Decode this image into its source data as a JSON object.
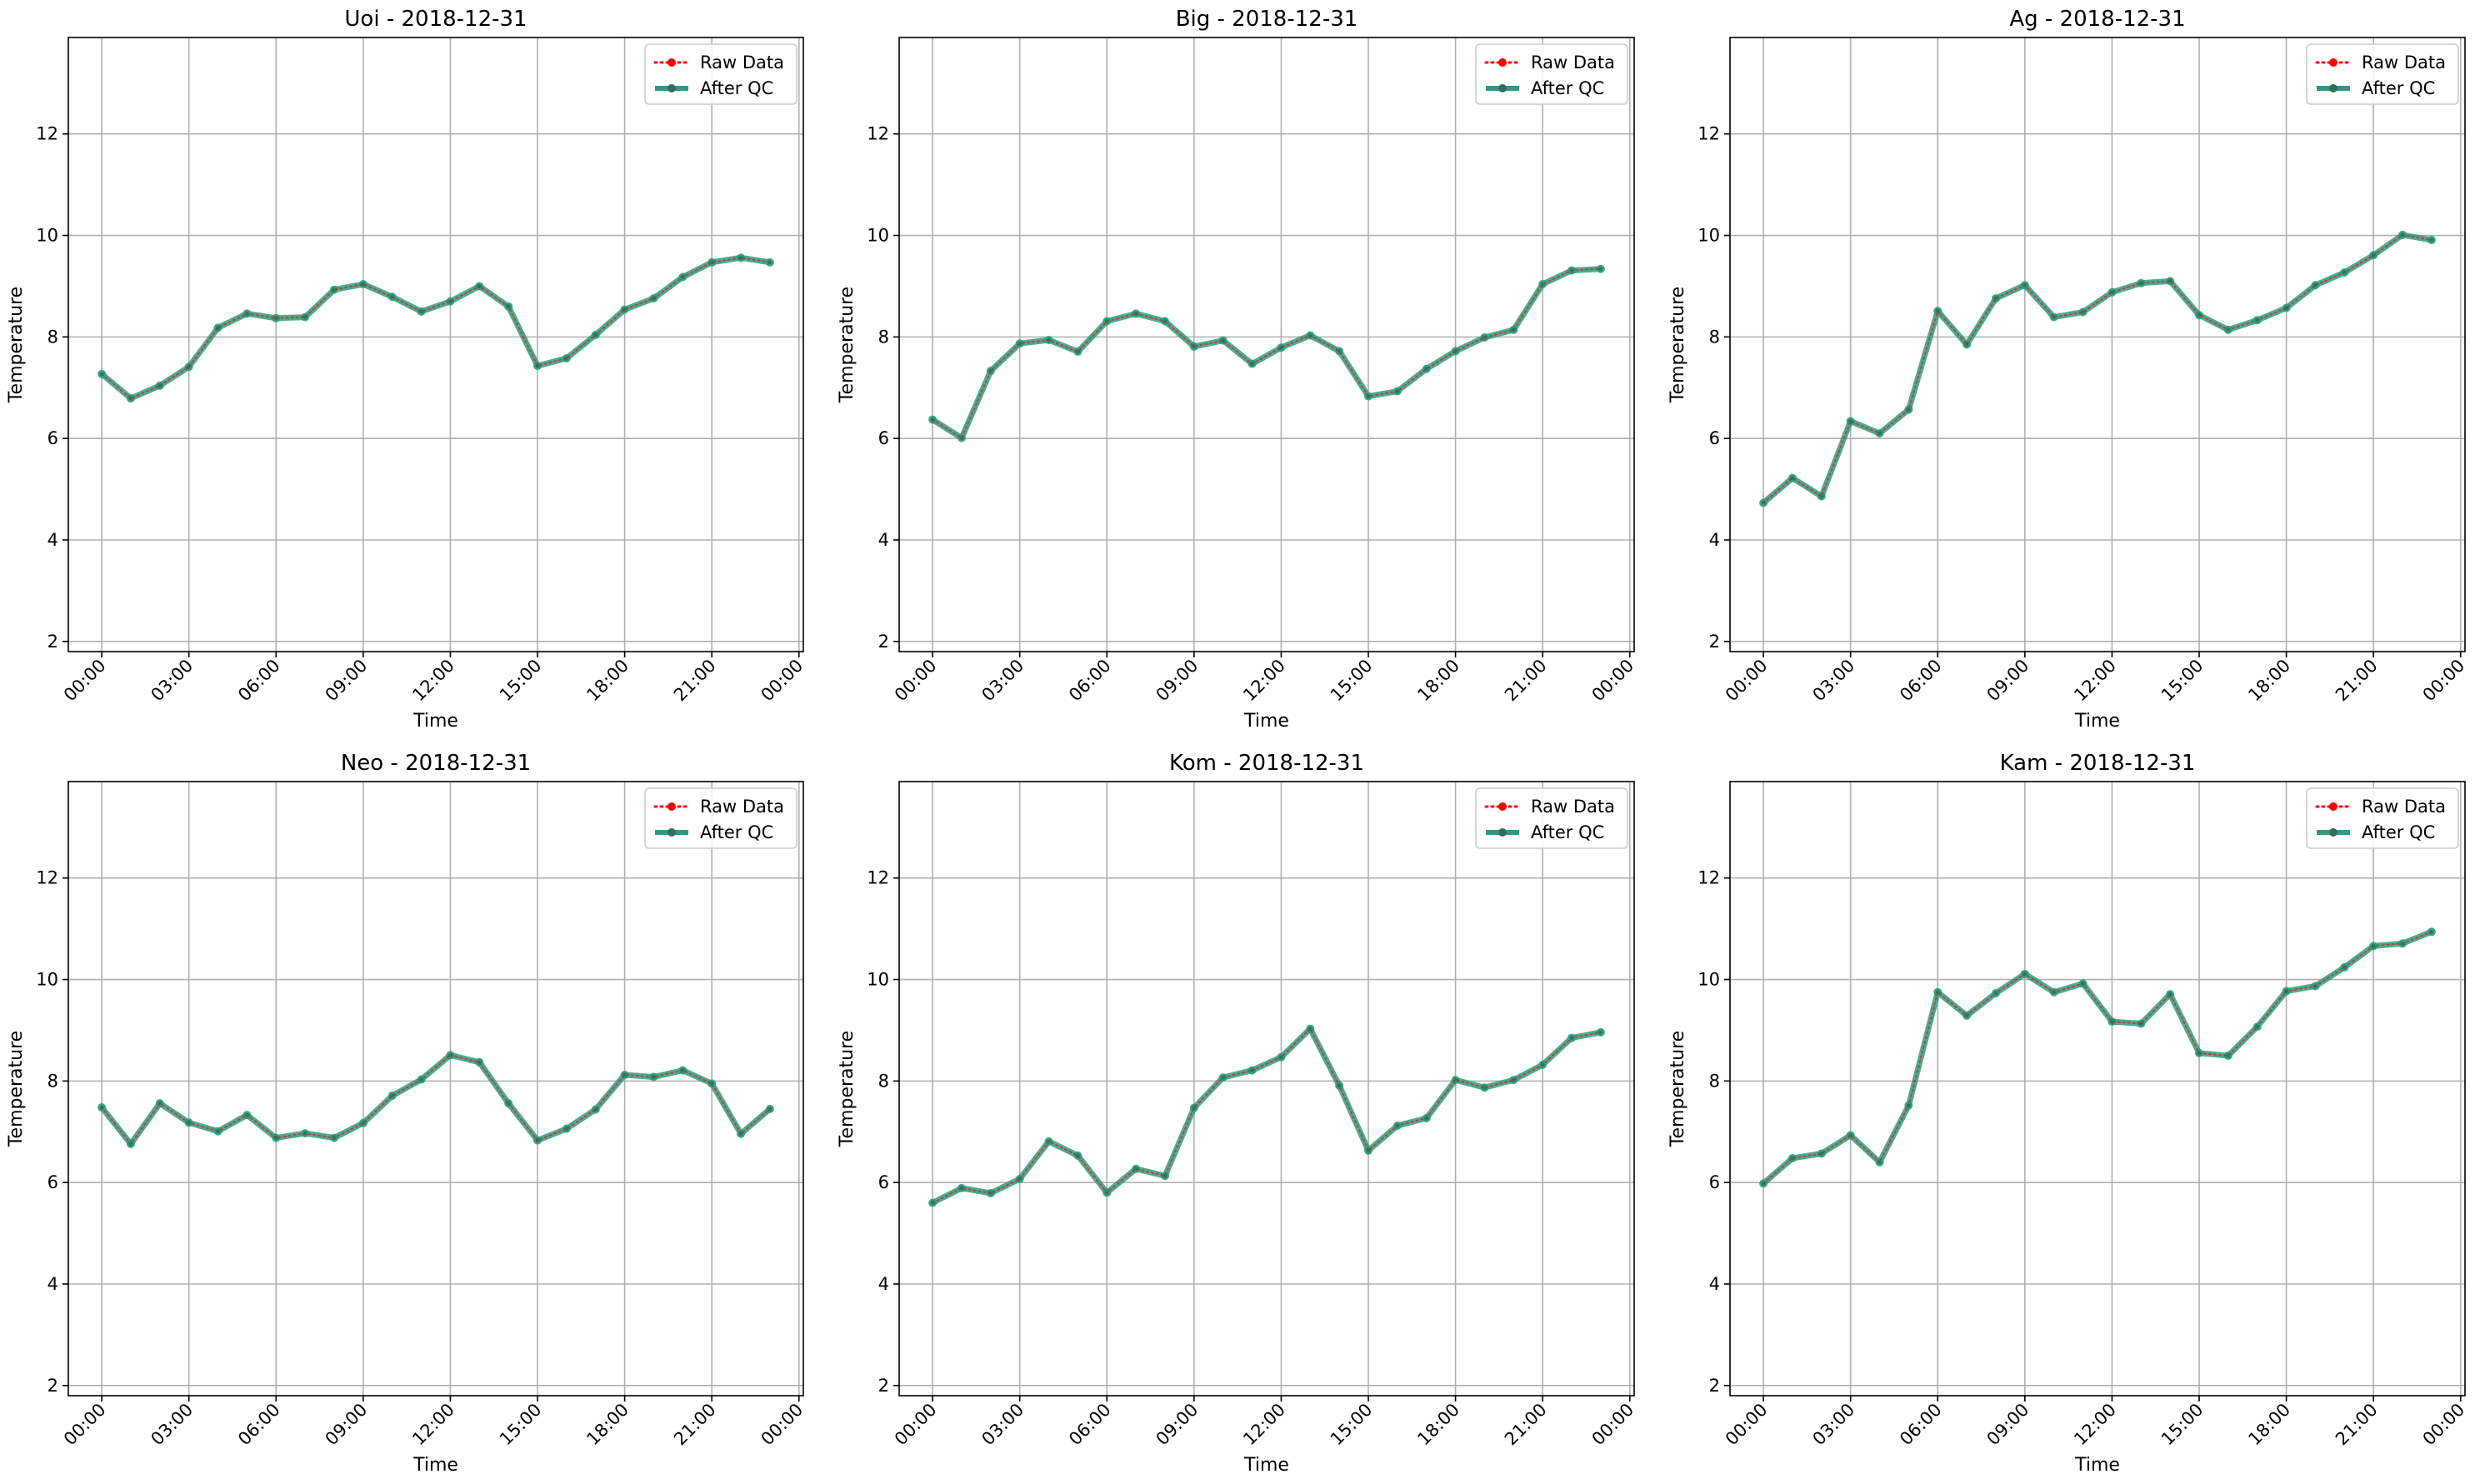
{
  "chart_data": [
    {
      "type": "line",
      "title": "Uoi - 2018-12-31",
      "xlabel": "Time",
      "ylabel": "Temperature",
      "x": [
        "00:00",
        "01:00",
        "02:00",
        "03:00",
        "04:00",
        "05:00",
        "06:00",
        "07:00",
        "08:00",
        "09:00",
        "10:00",
        "11:00",
        "12:00",
        "13:00",
        "14:00",
        "15:00",
        "16:00",
        "17:00",
        "18:00",
        "19:00",
        "20:00",
        "21:00",
        "22:00",
        "23:00"
      ],
      "xticks": [
        "00:00",
        "03:00",
        "06:00",
        "09:00",
        "12:00",
        "15:00",
        "18:00",
        "21:00",
        "00:00"
      ],
      "ylim": [
        1.8,
        13.9
      ],
      "yticks": [
        2,
        4,
        6,
        8,
        10,
        12
      ],
      "grid": true,
      "legend_position": "upper right",
      "series": [
        {
          "name": "Raw Data",
          "color": "#ff0000",
          "style": "dotted",
          "values": [
            7.27,
            6.79,
            7.04,
            7.41,
            8.18,
            8.46,
            8.37,
            8.39,
            8.93,
            9.04,
            8.79,
            8.5,
            8.7,
            9.0,
            8.6,
            7.43,
            7.58,
            8.04,
            8.54,
            8.76,
            9.18,
            9.47,
            9.56,
            9.47
          ]
        },
        {
          "name": "After QC",
          "color": "#2a9d7f",
          "style": "solid",
          "values": [
            7.27,
            6.79,
            7.04,
            7.41,
            8.18,
            8.46,
            8.37,
            8.39,
            8.93,
            9.04,
            8.79,
            8.5,
            8.7,
            9.0,
            8.6,
            7.43,
            7.58,
            8.04,
            8.54,
            8.76,
            9.18,
            9.47,
            9.56,
            9.47
          ]
        }
      ]
    },
    {
      "type": "line",
      "title": "Big - 2018-12-31",
      "xlabel": "Time",
      "ylabel": "Temperature",
      "x": [
        "00:00",
        "01:00",
        "02:00",
        "03:00",
        "04:00",
        "05:00",
        "06:00",
        "07:00",
        "08:00",
        "09:00",
        "10:00",
        "11:00",
        "12:00",
        "13:00",
        "14:00",
        "15:00",
        "16:00",
        "17:00",
        "18:00",
        "19:00",
        "20:00",
        "21:00",
        "22:00",
        "23:00"
      ],
      "xticks": [
        "00:00",
        "03:00",
        "06:00",
        "09:00",
        "12:00",
        "15:00",
        "18:00",
        "21:00",
        "00:00"
      ],
      "ylim": [
        1.8,
        13.9
      ],
      "yticks": [
        2,
        4,
        6,
        8,
        10,
        12
      ],
      "grid": true,
      "legend_position": "upper right",
      "series": [
        {
          "name": "Raw Data",
          "color": "#ff0000",
          "style": "dotted",
          "values": [
            6.37,
            6.01,
            7.33,
            7.87,
            7.94,
            7.71,
            8.31,
            8.46,
            8.31,
            7.81,
            7.93,
            7.47,
            7.79,
            8.03,
            7.72,
            6.83,
            6.93,
            7.37,
            7.72,
            7.99,
            8.14,
            9.04,
            9.31,
            9.34
          ]
        },
        {
          "name": "After QC",
          "color": "#2a9d7f",
          "style": "solid",
          "values": [
            6.37,
            6.01,
            7.33,
            7.87,
            7.94,
            7.71,
            8.31,
            8.46,
            8.31,
            7.81,
            7.93,
            7.47,
            7.79,
            8.03,
            7.72,
            6.83,
            6.93,
            7.37,
            7.72,
            7.99,
            8.14,
            9.04,
            9.31,
            9.34
          ]
        }
      ]
    },
    {
      "type": "line",
      "title": "Ag - 2018-12-31",
      "xlabel": "Time",
      "ylabel": "Temperature",
      "x": [
        "00:00",
        "01:00",
        "02:00",
        "03:00",
        "04:00",
        "05:00",
        "06:00",
        "07:00",
        "08:00",
        "09:00",
        "10:00",
        "11:00",
        "12:00",
        "13:00",
        "14:00",
        "15:00",
        "16:00",
        "17:00",
        "18:00",
        "19:00",
        "20:00",
        "21:00",
        "22:00",
        "23:00"
      ],
      "xticks": [
        "00:00",
        "03:00",
        "06:00",
        "09:00",
        "12:00",
        "15:00",
        "18:00",
        "21:00",
        "00:00"
      ],
      "ylim": [
        1.8,
        13.9
      ],
      "yticks": [
        2,
        4,
        6,
        8,
        10,
        12
      ],
      "grid": true,
      "legend_position": "upper right",
      "series": [
        {
          "name": "Raw Data",
          "color": "#ff0000",
          "style": "dotted",
          "values": [
            4.73,
            5.22,
            4.86,
            6.34,
            6.1,
            6.57,
            8.51,
            7.85,
            8.76,
            9.02,
            8.39,
            8.49,
            8.88,
            9.06,
            9.1,
            8.43,
            8.14,
            8.33,
            8.57,
            9.02,
            9.27,
            9.61,
            10.01,
            9.91
          ]
        },
        {
          "name": "After QC",
          "color": "#2a9d7f",
          "style": "solid",
          "values": [
            4.73,
            5.22,
            4.86,
            6.34,
            6.1,
            6.57,
            8.51,
            7.85,
            8.76,
            9.02,
            8.39,
            8.49,
            8.88,
            9.06,
            9.1,
            8.43,
            8.14,
            8.33,
            8.57,
            9.02,
            9.27,
            9.61,
            10.01,
            9.91
          ]
        }
      ]
    },
    {
      "type": "line",
      "title": "Neo - 2018-12-31",
      "xlabel": "Time",
      "ylabel": "Temperature",
      "x": [
        "00:00",
        "01:00",
        "02:00",
        "03:00",
        "04:00",
        "05:00",
        "06:00",
        "07:00",
        "08:00",
        "09:00",
        "10:00",
        "11:00",
        "12:00",
        "13:00",
        "14:00",
        "15:00",
        "16:00",
        "17:00",
        "18:00",
        "19:00",
        "20:00",
        "21:00",
        "22:00",
        "23:00"
      ],
      "xticks": [
        "00:00",
        "03:00",
        "06:00",
        "09:00",
        "12:00",
        "15:00",
        "18:00",
        "21:00",
        "00:00"
      ],
      "ylim": [
        1.8,
        13.9
      ],
      "yticks": [
        2,
        4,
        6,
        8,
        10,
        12
      ],
      "grid": true,
      "legend_position": "upper right",
      "series": [
        {
          "name": "Raw Data",
          "color": "#ff0000",
          "style": "dotted",
          "values": [
            7.48,
            6.76,
            7.56,
            7.18,
            7.01,
            7.33,
            6.88,
            6.97,
            6.88,
            7.17,
            7.71,
            8.03,
            8.51,
            8.37,
            7.56,
            6.83,
            7.06,
            7.44,
            8.12,
            8.08,
            8.21,
            7.95,
            6.96,
            7.45
          ]
        },
        {
          "name": "After QC",
          "color": "#2a9d7f",
          "style": "solid",
          "values": [
            7.48,
            6.76,
            7.56,
            7.18,
            7.01,
            7.33,
            6.88,
            6.97,
            6.88,
            7.17,
            7.71,
            8.03,
            8.51,
            8.37,
            7.56,
            6.83,
            7.06,
            7.44,
            8.12,
            8.08,
            8.21,
            7.95,
            6.96,
            7.45
          ]
        }
      ]
    },
    {
      "type": "line",
      "title": "Kom - 2018-12-31",
      "xlabel": "Time",
      "ylabel": "Temperature",
      "x": [
        "00:00",
        "01:00",
        "02:00",
        "03:00",
        "04:00",
        "05:00",
        "06:00",
        "07:00",
        "08:00",
        "09:00",
        "10:00",
        "11:00",
        "12:00",
        "13:00",
        "14:00",
        "15:00",
        "16:00",
        "17:00",
        "18:00",
        "19:00",
        "20:00",
        "21:00",
        "22:00",
        "23:00"
      ],
      "xticks": [
        "00:00",
        "03:00",
        "06:00",
        "09:00",
        "12:00",
        "15:00",
        "18:00",
        "21:00",
        "00:00"
      ],
      "ylim": [
        1.8,
        13.9
      ],
      "yticks": [
        2,
        4,
        6,
        8,
        10,
        12
      ],
      "grid": true,
      "legend_position": "upper right",
      "series": [
        {
          "name": "Raw Data",
          "color": "#ff0000",
          "style": "dotted",
          "values": [
            5.6,
            5.89,
            5.79,
            6.07,
            6.81,
            6.53,
            5.8,
            6.27,
            6.13,
            7.47,
            8.07,
            8.21,
            8.47,
            9.03,
            7.91,
            6.63,
            7.12,
            7.27,
            8.02,
            7.87,
            8.02,
            8.32,
            8.85,
            8.96
          ]
        },
        {
          "name": "After QC",
          "color": "#2a9d7f",
          "style": "solid",
          "values": [
            5.6,
            5.89,
            5.79,
            6.07,
            6.81,
            6.53,
            5.8,
            6.27,
            6.13,
            7.47,
            8.07,
            8.21,
            8.47,
            9.03,
            7.91,
            6.63,
            7.12,
            7.27,
            8.02,
            7.87,
            8.02,
            8.32,
            8.85,
            8.96
          ]
        }
      ]
    },
    {
      "type": "line",
      "title": "Kam - 2018-12-31",
      "xlabel": "Time",
      "ylabel": "Temperature",
      "x": [
        "00:00",
        "01:00",
        "02:00",
        "03:00",
        "04:00",
        "05:00",
        "06:00",
        "07:00",
        "08:00",
        "09:00",
        "10:00",
        "11:00",
        "12:00",
        "13:00",
        "14:00",
        "15:00",
        "16:00",
        "17:00",
        "18:00",
        "19:00",
        "20:00",
        "21:00",
        "22:00",
        "23:00"
      ],
      "xticks": [
        "00:00",
        "03:00",
        "06:00",
        "09:00",
        "12:00",
        "15:00",
        "18:00",
        "21:00",
        "00:00"
      ],
      "ylim": [
        1.8,
        13.9
      ],
      "yticks": [
        2,
        4,
        6,
        8,
        10,
        12
      ],
      "grid": true,
      "legend_position": "upper right",
      "series": [
        {
          "name": "Raw Data",
          "color": "#ff0000",
          "style": "dotted",
          "values": [
            5.98,
            6.48,
            6.57,
            6.93,
            6.4,
            7.52,
            9.75,
            9.29,
            9.73,
            10.11,
            9.75,
            9.92,
            9.17,
            9.13,
            9.71,
            8.55,
            8.5,
            9.07,
            9.77,
            9.87,
            10.24,
            10.66,
            10.71,
            10.94
          ]
        },
        {
          "name": "After QC",
          "color": "#2a9d7f",
          "style": "solid",
          "values": [
            5.98,
            6.48,
            6.57,
            6.93,
            6.4,
            7.52,
            9.75,
            9.29,
            9.73,
            10.11,
            9.75,
            9.92,
            9.17,
            9.13,
            9.71,
            8.55,
            8.5,
            9.07,
            9.77,
            9.87,
            10.24,
            10.66,
            10.71,
            10.94
          ]
        }
      ]
    }
  ]
}
